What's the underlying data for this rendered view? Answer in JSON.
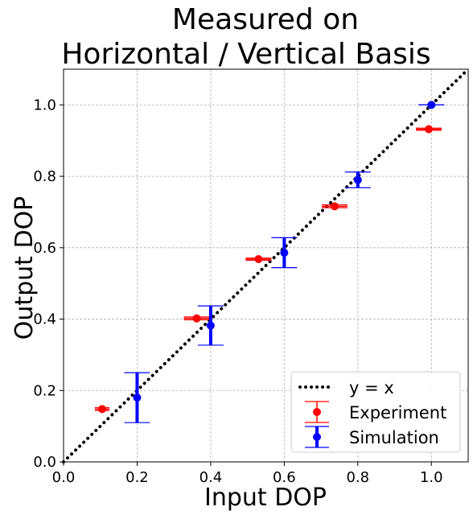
{
  "chart_data": {
    "type": "scatter",
    "title_lines": [
      "Measured on",
      "Horizontal / Vertical Basis"
    ],
    "xlabel": "Input DOP",
    "ylabel": "Output DOP",
    "xlim": [
      0.0,
      1.1
    ],
    "ylim": [
      0.0,
      1.1
    ],
    "xticks": [
      0.0,
      0.2,
      0.4,
      0.6,
      0.8,
      1.0
    ],
    "yticks": [
      0.0,
      0.2,
      0.4,
      0.6,
      0.8,
      1.0
    ],
    "tick_labels": [
      "0.0",
      "0.2",
      "0.4",
      "0.6",
      "0.8",
      "1.0"
    ],
    "grid": true,
    "legend_position": "lower-right",
    "reference_line": {
      "name": "y = x",
      "color": "#000000",
      "style": "dotted"
    },
    "series": [
      {
        "name": "Experiment",
        "color": "#ff0000",
        "points": [
          {
            "x": 0.105,
            "y": 0.148,
            "xerr": 0.02,
            "yerr": 0.004
          },
          {
            "x": 0.362,
            "y": 0.402,
            "xerr": 0.035,
            "yerr": 0.004
          },
          {
            "x": 0.53,
            "y": 0.568,
            "xerr": 0.035,
            "yerr": 0.003
          },
          {
            "x": 0.737,
            "y": 0.716,
            "xerr": 0.035,
            "yerr": 0.004
          },
          {
            "x": 0.993,
            "y": 0.932,
            "xerr": 0.035,
            "yerr": 0.003
          }
        ]
      },
      {
        "name": "Simulation",
        "color": "#0000ff",
        "points": [
          {
            "x": 0.2,
            "y": 0.18,
            "yerr": 0.07,
            "cap": 0.035
          },
          {
            "x": 0.4,
            "y": 0.382,
            "yerr": 0.055,
            "cap": 0.035
          },
          {
            "x": 0.6,
            "y": 0.586,
            "yerr": 0.042,
            "cap": 0.035
          },
          {
            "x": 0.8,
            "y": 0.79,
            "yerr": 0.022,
            "cap": 0.035
          },
          {
            "x": 1.0,
            "y": 1.0,
            "yerr": 0.0,
            "cap": 0.035
          }
        ]
      }
    ]
  }
}
